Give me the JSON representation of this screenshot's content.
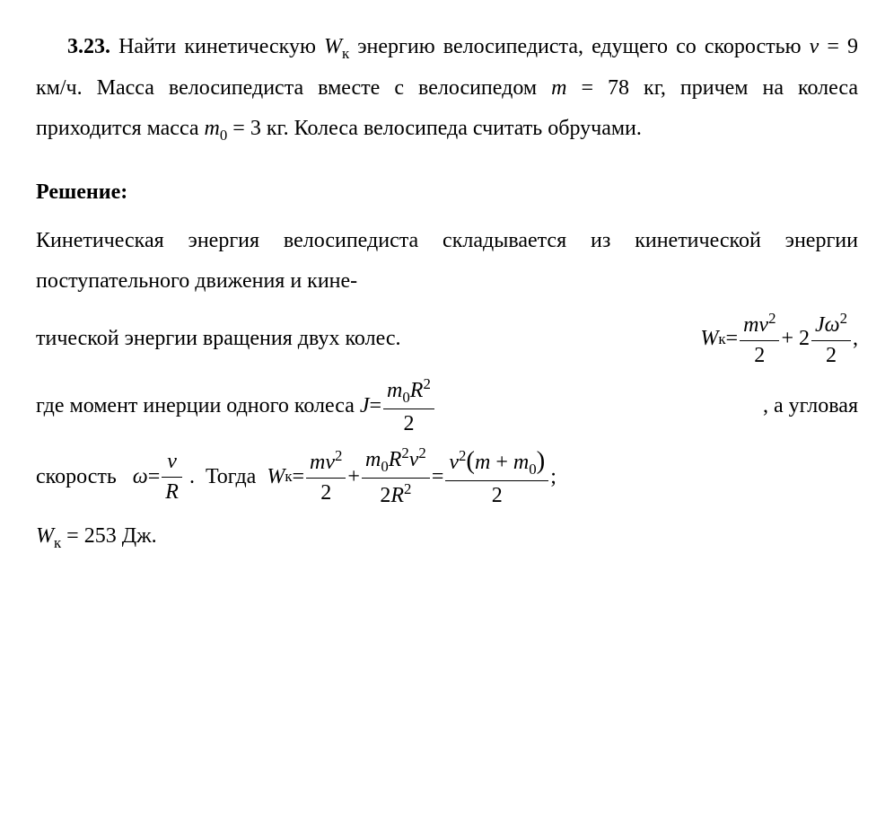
{
  "problem": {
    "number": "3.23.",
    "text_p1": "Найти кинетическую ",
    "var_Wk": "W",
    "var_Wk_sub": "к",
    "text_p2": " энергию велосипедиста, едущего со скоростью ",
    "var_v": "v",
    "eq_v": " = 9 км/ч. ",
    "text_p3": "Масса велосипедиста вместе с велосипедом ",
    "var_m": "m",
    "eq_m": " = 78 кг, ",
    "text_p4": "причем на колеса приходится масса ",
    "var_m0": "m",
    "var_m0_sub": "0",
    "eq_m0": " = 3 кг. ",
    "text_p5": "Колеса велосипеда считать обручами."
  },
  "solution": {
    "title": "Решение:",
    "line1": "Кинетическая энергия велосипедиста складывается из кинетической энергии поступательного движения и кине-",
    "line2_txt": "тической энергии вращения двух колес.",
    "formula1": {
      "lhs_W": "W",
      "lhs_sub": "к",
      "eq": " = ",
      "f1_num_m": "m",
      "f1_num_v": "v",
      "f1_sup": "2",
      "f1_den": "2",
      "plus": " + 2",
      "f2_num_J": "J",
      "f2_num_w": "ω",
      "f2_sup": "2",
      "f2_den": "2",
      "comma": ","
    },
    "line3_pre": "где момент инерции одного колеса ",
    "formula2": {
      "lhs_J": "J",
      "eq": " = ",
      "num_m": "m",
      "num_sub": "0",
      "num_R": "R",
      "num_sup": "2",
      "den": "2"
    },
    "line3_post": ", а угловая",
    "line4_pre": "скорость   ",
    "formula3": {
      "lhs_w": "ω",
      "eq": " = ",
      "num_v": "v",
      "den_R": "R"
    },
    "line4_mid": " .  Тогда  ",
    "formula4": {
      "lhs_W": "W",
      "lhs_sub": "к",
      "eq": " = ",
      "f1_num_m": "m",
      "f1_num_v": "v",
      "f1_sup": "2",
      "f1_den": "2",
      "plus1": " + ",
      "f2_num_m": "m",
      "f2_num_sub": "0",
      "f2_num_R": "R",
      "f2_num_Rs": "2",
      "f2_num_v": "v",
      "f2_num_vs": "2",
      "f2_den_2": "2",
      "f2_den_R": "R",
      "f2_den_Rs": "2",
      "eq2": " = ",
      "f3_num_v": "v",
      "f3_num_vs": "2",
      "f3_num_lp": "(",
      "f3_num_m": "m",
      "f3_num_pl": " + ",
      "f3_num_m0": "m",
      "f3_num_m0s": "0",
      "f3_num_rp": ")",
      "f3_den": "2",
      "semi": " ;"
    },
    "line5_W": "W",
    "line5_sub": "к",
    "line5_eq": " = 253 Дж."
  },
  "style": {
    "font_family": "Times New Roman",
    "font_size_pt": 18,
    "text_color": "#000000",
    "background": "#ffffff"
  }
}
